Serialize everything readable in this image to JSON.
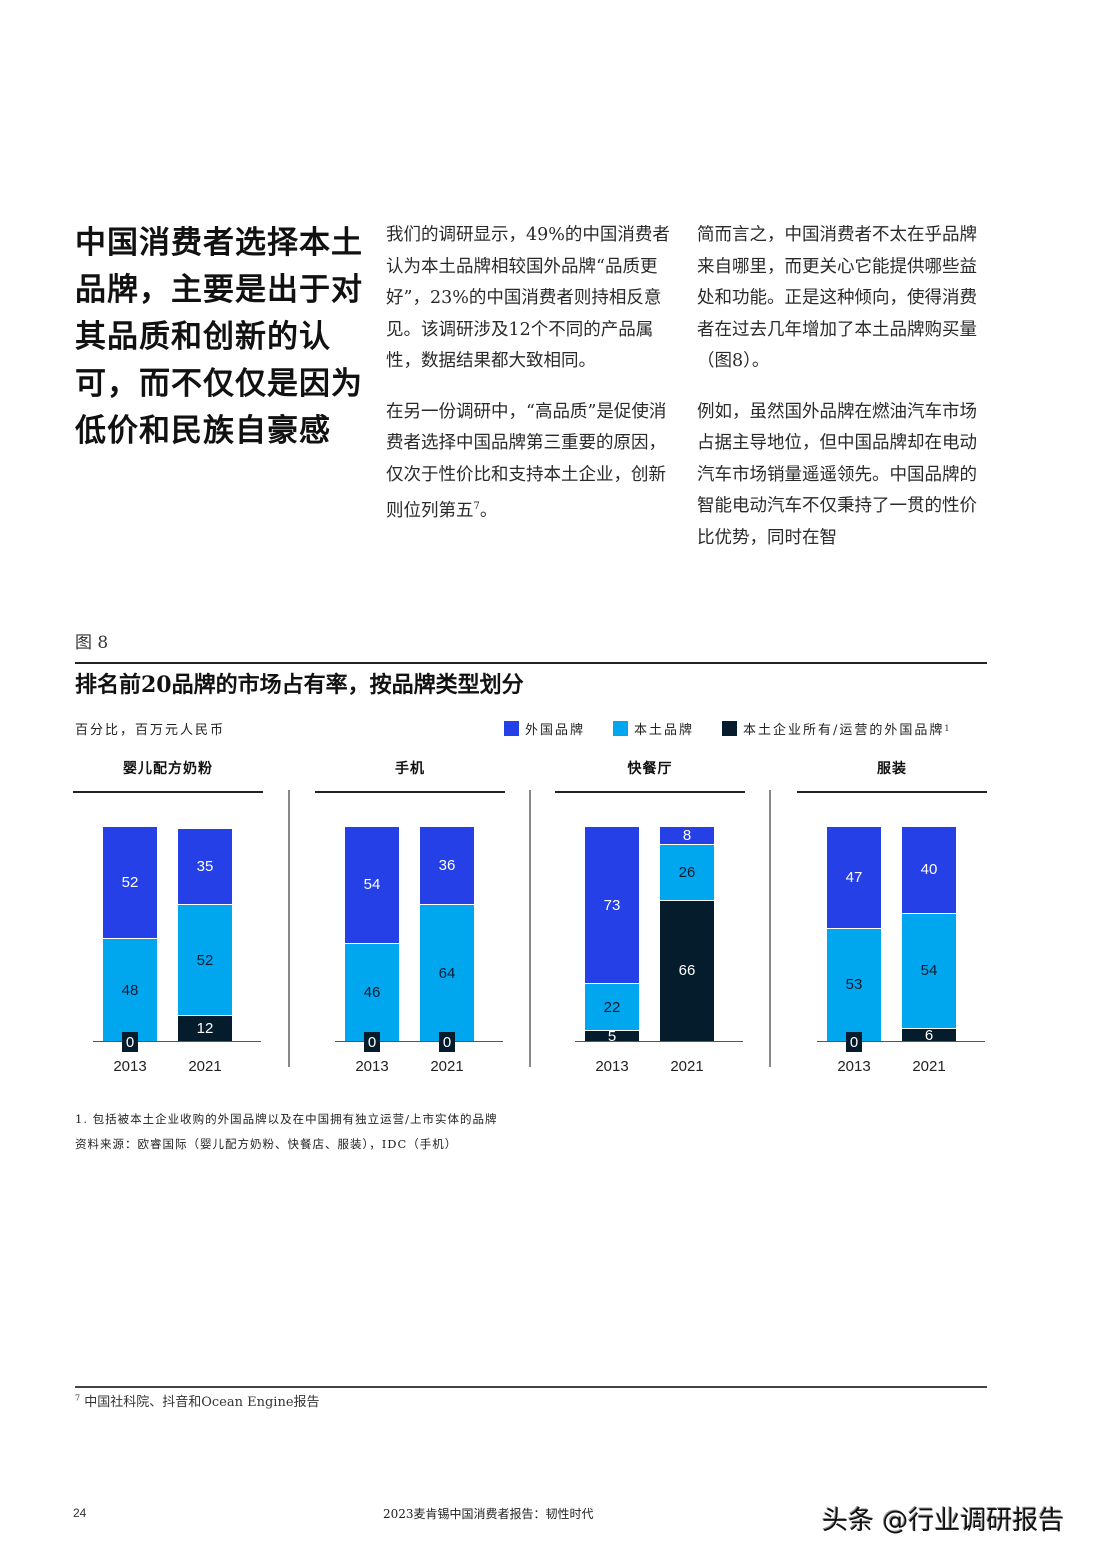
{
  "headline": "中国消费者选择本土品牌，主要是出于对其品质和创新的认可，而不仅仅是因为低价和民族自豪感",
  "column_middle": {
    "p1": "我们的调研显示，49%的中国消费者认为本土品牌相较国外品牌“品质更好”，23%的中国消费者则持相反意见。该调研涉及12个不同的产品属性，数据结果都大致相同。",
    "p2": "在另一份调研中，“高品质”是促使消费者选择中国品牌第三重要的原因，仅次于性价比和支持本土企业，创新则位列第五",
    "p2_sup": "7",
    "p2_end": "。"
  },
  "column_right": {
    "p1": "简而言之，中国消费者不太在乎品牌来自哪里，而更关心它能提供哪些益处和功能。正是这种倾向，使得消费者在过去几年增加了本土品牌购买量（图8）。",
    "p2": "例如，虽然国外品牌在燃油汽车市场占据主导地位，但中国品牌却在电动汽车市场销量遥遥领先。中国品牌的智能电动汽车不仅秉持了一贯的性价比优势，同时在智"
  },
  "figure": {
    "label": "图 8",
    "title": "排名前20品牌的市场占有率，按品牌类型划分",
    "units": "百分比，百万元人民币",
    "legend": [
      {
        "key": "foreign",
        "label": "外国品牌",
        "color": "#2440e6"
      },
      {
        "key": "local",
        "label": "本土品牌",
        "color": "#00a6ee"
      },
      {
        "key": "owned",
        "label": "本土企业所有/运营的外国品牌",
        "sup": "1",
        "color": "#051c2c"
      }
    ],
    "notes": {
      "note1": "1. 包括被本土企业收购的外国品牌以及在中国拥有独立运营/上市实体的品牌",
      "source": "资料来源：欧睿国际（婴儿配方奶粉、快餐店、服装），IDC（手机）"
    }
  },
  "chart_data": {
    "type": "bar",
    "stacked": true,
    "title": "排名前20品牌的市场占有率，按品牌类型划分",
    "ylabel": "百分比，百万元人民币",
    "ylim": [
      0,
      100
    ],
    "legend_position": "top-right",
    "grid": false,
    "series_names": [
      "外国品牌",
      "本土品牌",
      "本土企业所有/运营的外国品牌"
    ],
    "panels": [
      {
        "category": "婴儿配方奶粉",
        "years": [
          "2013",
          "2021"
        ],
        "series": [
          {
            "name": "外国品牌",
            "values": [
              52,
              35
            ]
          },
          {
            "name": "本土品牌",
            "values": [
              48,
              52
            ]
          },
          {
            "name": "本土企业所有/运营的外国品牌",
            "values": [
              0,
              12
            ]
          }
        ]
      },
      {
        "category": "手机",
        "years": [
          "2013",
          "2021"
        ],
        "series": [
          {
            "name": "外国品牌",
            "values": [
              54,
              36
            ]
          },
          {
            "name": "本土品牌",
            "values": [
              46,
              64
            ]
          },
          {
            "name": "本土企业所有/运营的外国品牌",
            "values": [
              0,
              0
            ]
          }
        ]
      },
      {
        "category": "快餐厅",
        "years": [
          "2013",
          "2021"
        ],
        "series": [
          {
            "name": "外国品牌",
            "values": [
              73,
              8
            ]
          },
          {
            "name": "本土品牌",
            "values": [
              22,
              26
            ]
          },
          {
            "name": "本土企业所有/运营的外国品牌",
            "values": [
              5,
              66
            ]
          }
        ]
      },
      {
        "category": "服装",
        "years": [
          "2013",
          "2021"
        ],
        "series": [
          {
            "name": "外国品牌",
            "values": [
              47,
              40
            ]
          },
          {
            "name": "本土品牌",
            "values": [
              53,
              54
            ]
          },
          {
            "name": "本土企业所有/运营的外国品牌",
            "values": [
              0,
              6
            ]
          }
        ]
      }
    ]
  },
  "footnote": {
    "sup": "7",
    "text": "中国社科院、抖音和Ocean Engine报告"
  },
  "footer": {
    "page_number": "24",
    "running_title": "2023麦肯锡中国消费者报告：韧性时代",
    "watermark": "头条 @行业调研报告"
  }
}
